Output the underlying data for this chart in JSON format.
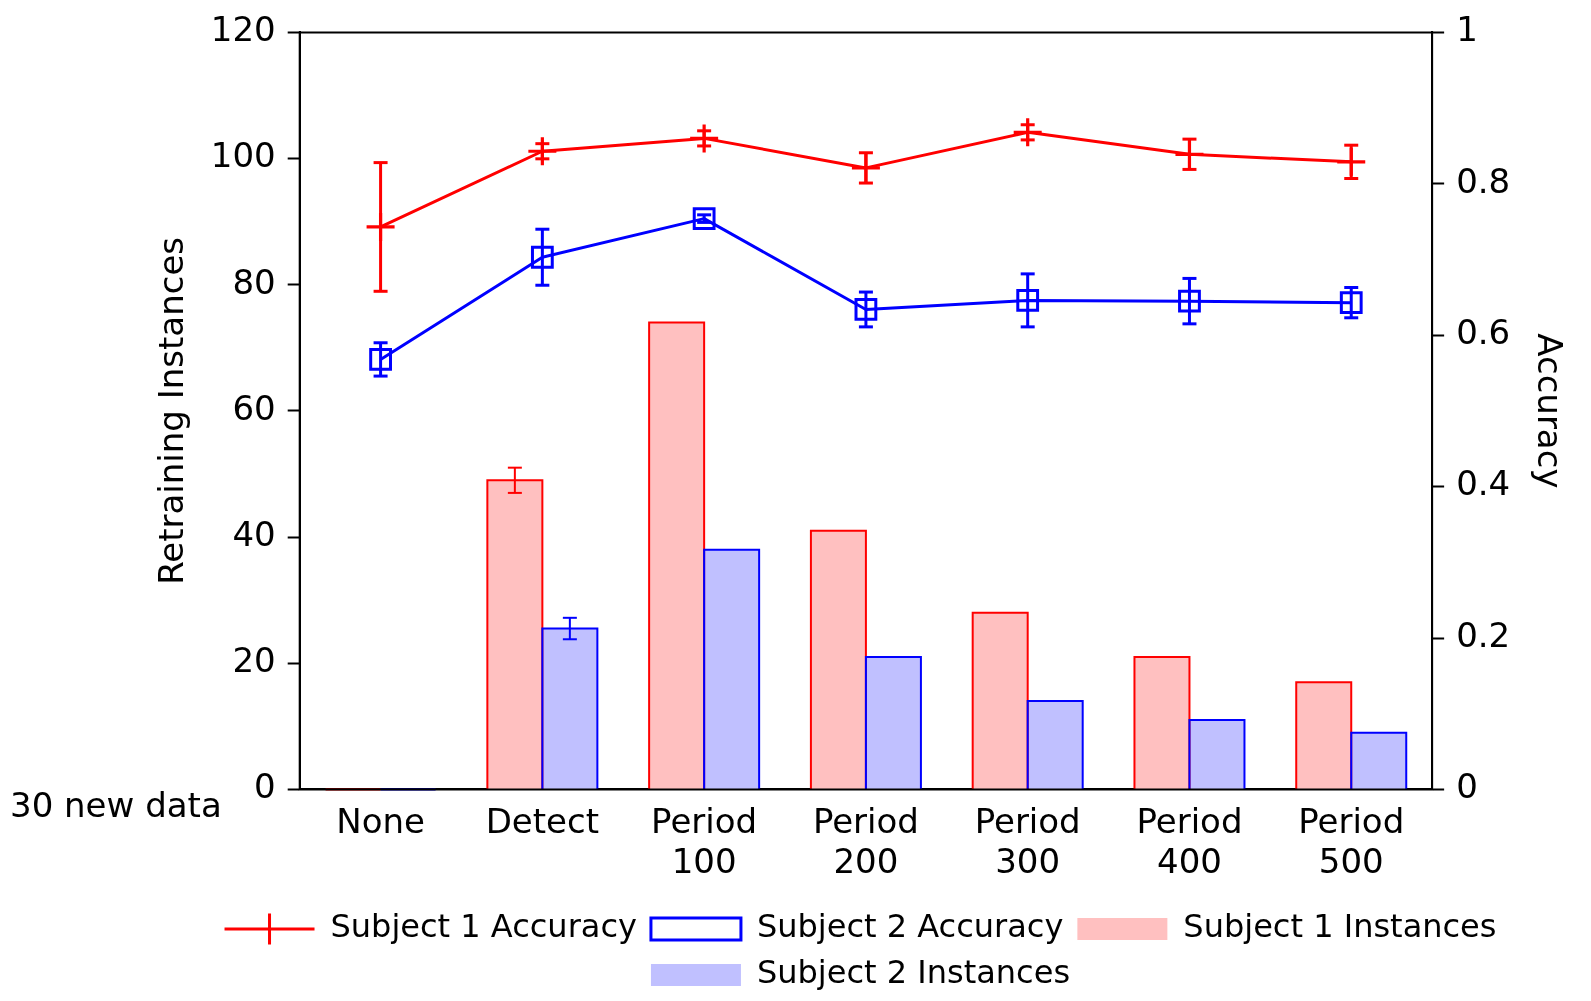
{
  "chart_data": {
    "type": "bar",
    "categories": [
      "None",
      "Detect",
      "Period 100",
      "Period 200",
      "Period 300",
      "Period 400",
      "Period 500"
    ],
    "ylabel": "Retraining Instances",
    "y2label": "Accuracy",
    "ylim": [
      0,
      120
    ],
    "yticks": [
      0,
      20,
      40,
      60,
      80,
      100,
      120
    ],
    "y2lim": [
      0,
      1
    ],
    "y2ticks": [
      0,
      0.2,
      0.4,
      0.6,
      0.8,
      1
    ],
    "grid": false,
    "legend": "bottom",
    "annotations": [
      "30 new data"
    ],
    "series": [
      {
        "name": "Subject 1 Instances",
        "color": "#ffc0c0",
        "values": [
          0,
          49,
          74,
          41,
          28,
          21,
          17
        ],
        "errors": [
          null,
          2,
          null,
          null,
          null,
          null,
          null
        ]
      },
      {
        "name": "Subject 2 Instances",
        "color": "#c0c0ff",
        "values": [
          0,
          25.5,
          38,
          21,
          14,
          11,
          9
        ],
        "errors": [
          null,
          1.7,
          null,
          null,
          null,
          null,
          null
        ]
      },
      {
        "name": "Subject 1 Accuracy",
        "type": "line",
        "axis": "y2",
        "marker": "cross",
        "color": "#ff0000",
        "values": [
          0.743,
          0.843,
          0.86,
          0.821,
          0.868,
          0.839,
          0.829
        ],
        "errors": [
          0.085,
          0.01,
          0.01,
          0.02,
          0.01,
          0.02,
          0.022
        ]
      },
      {
        "name": "Subject 2 Accuracy",
        "type": "line",
        "axis": "y2",
        "marker": "square",
        "color": "#0000ff",
        "values": [
          0.568,
          0.703,
          0.754,
          0.634,
          0.646,
          0.645,
          0.643
        ],
        "errors": [
          0.022,
          0.037,
          0.005,
          0.023,
          0.035,
          0.03,
          0.02
        ]
      }
    ]
  }
}
